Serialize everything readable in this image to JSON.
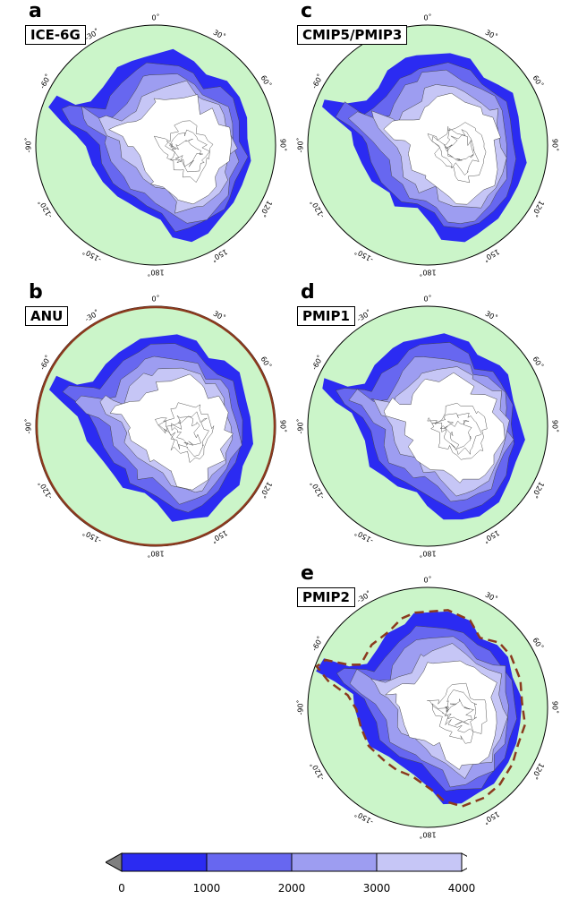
{
  "panels": [
    {
      "id": "a",
      "letter": "a",
      "label": "ICE-6G"
    },
    {
      "id": "b",
      "letter": "b",
      "label": "ANU"
    },
    {
      "id": "c",
      "letter": "c",
      "label": "CMIP5/PMIP3"
    },
    {
      "id": "d",
      "letter": "d",
      "label": "PMIP1"
    },
    {
      "id": "e",
      "letter": "e",
      "label": "PMIP2"
    }
  ],
  "longitude_ticks": [
    "0˚",
    "30˚",
    "60˚",
    "90˚",
    "120˚",
    "150˚",
    "180˚",
    "-150˚",
    "-120˚",
    "-90˚",
    "-60˚",
    "-30˚"
  ],
  "colorbar": {
    "ticks": [
      "0",
      "1000",
      "2000",
      "3000",
      "4000"
    ],
    "colors": [
      "#2b2bf2",
      "#6767f0",
      "#9d9df1",
      "#c6c6f6",
      "#ffffff"
    ],
    "under_color": "#7f7f7f",
    "over_color": "#ffffff"
  },
  "colors": {
    "ocean": "#cbf5c9",
    "margin": "#8b3a1e"
  }
}
